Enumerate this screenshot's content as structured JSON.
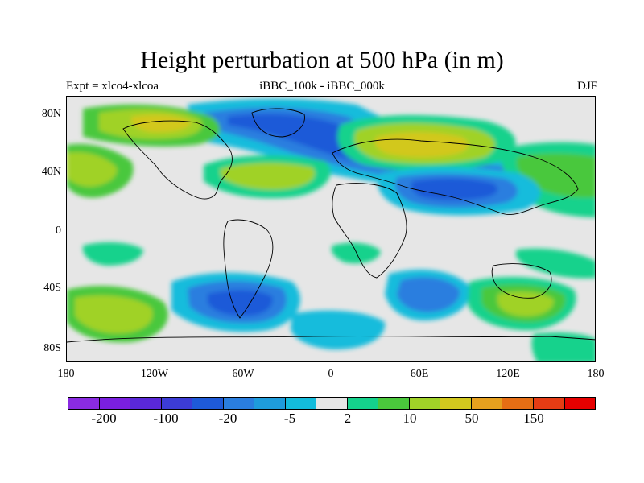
{
  "title": "Height perturbation at 500 hPa (in m)",
  "subtitle_left": "Expt = xlco4-xlcoa",
  "subtitle_center": "iBBC_100k - iBBC_000k",
  "subtitle_right": "DJF",
  "lat_ticks": [
    "80N",
    "40N",
    "0",
    "40S",
    "80S"
  ],
  "lon_ticks": [
    "180",
    "120W",
    "60W",
    "0",
    "60E",
    "120E",
    "180"
  ],
  "colorbar": {
    "colors": [
      "#8a2be2",
      "#7a1fe0",
      "#5a28d8",
      "#3c3cd6",
      "#1e5ad8",
      "#2a7edf",
      "#1e9cdc",
      "#13bcdc",
      "#e6e6e6",
      "#14d28c",
      "#4ac83c",
      "#a0d228",
      "#d2c81e",
      "#e6a01e",
      "#e66e14",
      "#e63c14",
      "#e60000"
    ],
    "labels": [
      "-200",
      "-100",
      "-20",
      "-5",
      "2",
      "10",
      "50",
      "150"
    ]
  }
}
